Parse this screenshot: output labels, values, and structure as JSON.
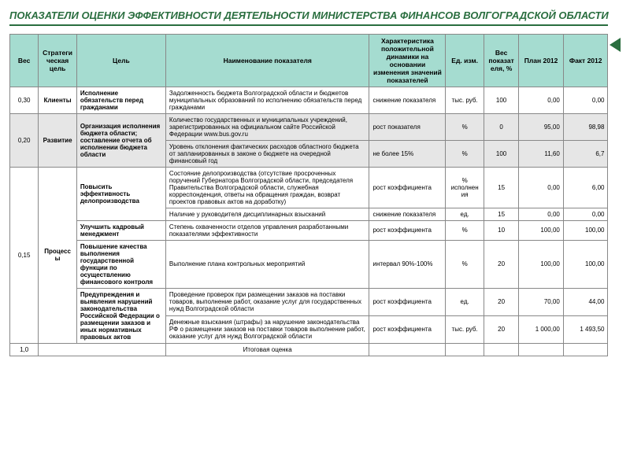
{
  "title": "ПОКАЗАТЕЛИ ОЦЕНКИ ЭФФЕКТИВНОСТИ ДЕЯТЕЛЬНОСТИ МИНИСТЕРСТВА ФИНАНСОВ ВОЛГОГРАДСКОЙ ОБЛАСТИ",
  "colors": {
    "header_bg": "#a5dcd0",
    "title_color": "#2a6e3f",
    "border": "#888888",
    "shaded_row": "#e6e6e6"
  },
  "headers": {
    "ves": "Вес",
    "strategic": "Стратегическая цель",
    "goal": "Цель",
    "indicator": "Наименование показателя",
    "characteristic": "Характеристика положительной динамики на основании изменения значений показателей",
    "unit": "Ед. изм.",
    "weight": "Вес показателя, %",
    "plan": "План 2012",
    "fact": "Факт 2012"
  },
  "rows": [
    {
      "ves": "0,30",
      "strat": "Клиенты",
      "goal": "Исполнение обязательств перед гражданами",
      "indicator": "Задолженность бюджета Волгоградской области и бюджетов муниципальных образований по исполнению обязательств перед гражданами",
      "char": "снижение показателя",
      "unit": "тыс. руб.",
      "weight": "100",
      "plan": "0,00",
      "fact": "0,00",
      "shaded": false,
      "ves_rowspan": 1,
      "strat_rowspan": 1,
      "goal_rowspan": 1
    },
    {
      "ves": "0,20",
      "strat": "Развитие",
      "goal": "Организация исполнения бюджета области; составление отчета об исполнении бюджета области",
      "indicator": "Количество государственных и муниципальных учреждений, зарегистрированных на официальном сайте Российской Федерации www.bus.gov.ru",
      "char": "рост показателя",
      "unit": "%",
      "weight": "0",
      "plan": "95,00",
      "fact": "98,98",
      "shaded": true,
      "ves_rowspan": 2,
      "strat_rowspan": 2,
      "goal_rowspan": 2
    },
    {
      "indicator": "Уровень отклонения фактических расходов областного бюджета от запланированных в законе о бюджете на очередной финансовый год",
      "char": "не более 15%",
      "unit": "%",
      "weight": "100",
      "plan": "11,60",
      "fact": "6,7",
      "shaded": true
    },
    {
      "ves": "0,15",
      "strat": "Процессы",
      "goal": "Повысить эффективность делопроизводства",
      "indicator": "Состояние делопроизводства (отсутствие просроченных поручений Губернатора Волгоградской области, председателя Правительства Волгоградской области, служебная корреспонденция, ответы на обращения граждан, возврат проектов правовых актов на доработку)",
      "char": "рост коэффициента",
      "unit": "% исполнения",
      "weight": "15",
      "plan": "0,00",
      "fact": "6,00",
      "shaded": false,
      "ves_rowspan": 6,
      "strat_rowspan": 6,
      "goal_rowspan": 2
    },
    {
      "indicator": "Наличие у руководителя дисциплинарных взысканий",
      "char": "снижение показателя",
      "unit": "ед.",
      "weight": "15",
      "plan": "0,00",
      "fact": "0,00",
      "shaded": false
    },
    {
      "goal": "Улучшить кадровый менеджмент",
      "indicator": "Степень охваченности отделов управления разработанными показателями эффективности",
      "char": "рост коэффициента",
      "unit": "%",
      "weight": "10",
      "plan": "100,00",
      "fact": "100,00",
      "shaded": false,
      "goal_rowspan": 1
    },
    {
      "goal": "Повышение качества выполнения государственной функции по осуществлению финансового контроля",
      "indicator": "Выполнение плана контрольных мероприятий",
      "char": "интервал 90%-100%",
      "unit": "%",
      "weight": "20",
      "plan": "100,00",
      "fact": "100,00",
      "shaded": false,
      "goal_rowspan": 1
    },
    {
      "goal": "Предупреждения и выявления нарушений законодательства Российской Федерации о размещении заказов и иных нормативных правовых актов",
      "indicator": "Проведение проверок при размещении заказов на поставки товаров, выполнение работ, оказание услуг для государственных нужд Волгоградской области",
      "char": "рост коэффициента",
      "unit": "ед.",
      "weight": "20",
      "plan": "70,00",
      "fact": "44,00",
      "shaded": false,
      "goal_rowspan": 2
    },
    {
      "indicator": "Денежные взыскания (штрафы) за нарушение законодательства РФ о размещении заказов на поставки товаров выполнение работ, оказание услуг для нужд Волгоградской области",
      "char": "рост коэффициента",
      "unit": "тыс. руб.",
      "weight": "20",
      "plan": "1 000,00",
      "fact": "1 493,50",
      "shaded": false
    }
  ],
  "footer": {
    "ves": "1,0",
    "label": "Итоговая оценка"
  }
}
